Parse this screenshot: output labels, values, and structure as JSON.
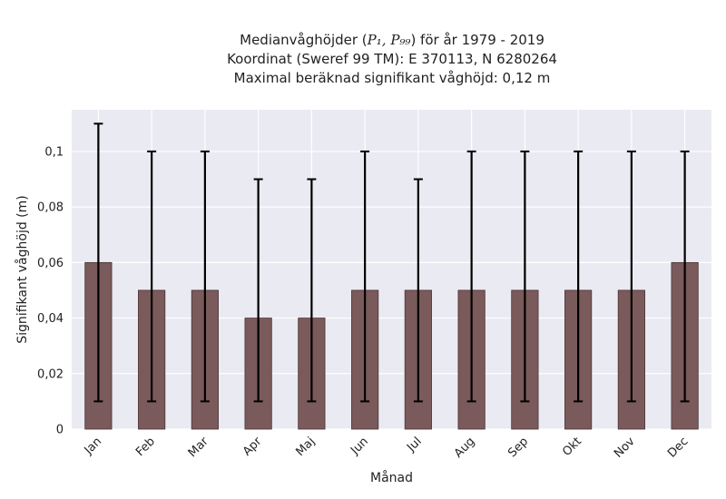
{
  "chart_data": {
    "type": "bar",
    "title": {
      "line1_prefix": "Medianvåghöjder (",
      "line1_math": "P₁, P₉₉",
      "line1_suffix": ") för år 1979 - 2019",
      "line2": "Koordinat (Sweref 99 TM): E 370113, N 6280264",
      "line3": "Maximal beräknad signifikant våghöjd: 0,12 m"
    },
    "xlabel": "Månad",
    "ylabel": "Signifikant våghöjd (m)",
    "categories": [
      "Jan",
      "Feb",
      "Mar",
      "Apr",
      "Maj",
      "Jun",
      "Jul",
      "Aug",
      "Sep",
      "Okt",
      "Nov",
      "Dec"
    ],
    "series": [
      {
        "values": [
          0.06,
          0.05,
          0.05,
          0.04,
          0.04,
          0.05,
          0.05,
          0.05,
          0.05,
          0.05,
          0.05,
          0.06
        ],
        "error_low": [
          0.01,
          0.01,
          0.01,
          0.01,
          0.01,
          0.01,
          0.01,
          0.01,
          0.01,
          0.01,
          0.01,
          0.01
        ],
        "error_high": [
          0.11,
          0.1,
          0.1,
          0.09,
          0.09,
          0.1,
          0.09,
          0.1,
          0.1,
          0.1,
          0.1,
          0.1
        ]
      }
    ],
    "ylim": [
      0,
      0.115
    ],
    "yticks": [
      0,
      0.02,
      0.04,
      0.06,
      0.08,
      0.1
    ],
    "ytick_labels": [
      "0",
      "0,02",
      "0,04",
      "0,06",
      "0,08",
      "0,1"
    ],
    "grid": true,
    "colors": {
      "bar": "#7a5a5a",
      "bar_edge": "#4a3535",
      "plot_bg": "#eaeaf2",
      "grid": "#ffffff",
      "error": "#000000"
    }
  }
}
